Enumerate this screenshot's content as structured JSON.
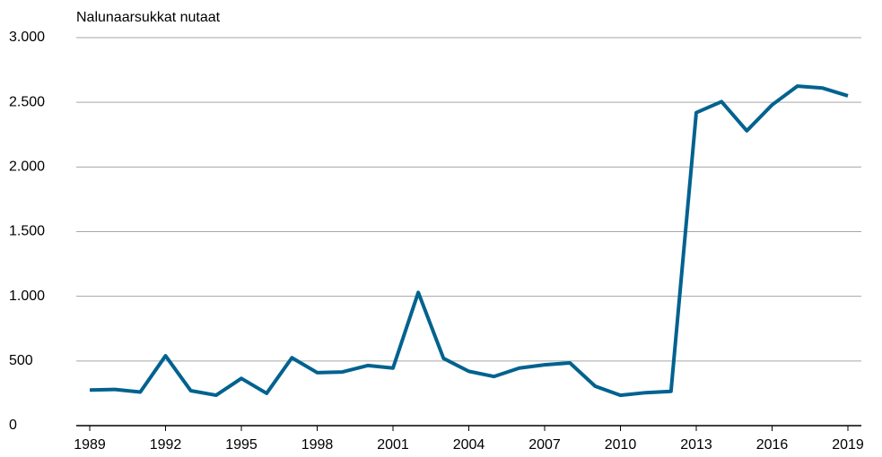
{
  "chart_data": {
    "type": "line",
    "ylabel": "Nalunaarsukkat nutaat",
    "x": [
      1989,
      1990,
      1991,
      1992,
      1993,
      1994,
      1995,
      1996,
      1997,
      1998,
      1999,
      2000,
      2001,
      2002,
      2003,
      2004,
      2005,
      2006,
      2007,
      2008,
      2009,
      2010,
      2011,
      2012,
      2013,
      2014,
      2015,
      2016,
      2017,
      2018,
      2019
    ],
    "series": [
      {
        "name": "Nalunaarsukkat nutaat",
        "color": "#00628f",
        "values": [
          275,
          280,
          260,
          540,
          270,
          235,
          365,
          250,
          525,
          410,
          415,
          465,
          445,
          1030,
          520,
          420,
          380,
          445,
          470,
          485,
          305,
          235,
          255,
          265,
          2420,
          2505,
          2280,
          2480,
          2625,
          2610,
          2550
        ]
      }
    ],
    "xlim": [
      1989,
      2019
    ],
    "xticks": [
      1989,
      1992,
      1995,
      1998,
      2001,
      2004,
      2007,
      2010,
      2013,
      2016,
      2019
    ],
    "ylim": [
      0,
      3000
    ],
    "yticks": [
      0,
      500,
      {
        "value": 1000,
        "label": "1.000"
      },
      {
        "value": 1500,
        "label": "1.500"
      },
      {
        "value": 2000,
        "label": "2.000"
      },
      {
        "value": 2500,
        "label": "2.500"
      },
      {
        "value": 3000,
        "label": "3.000"
      }
    ],
    "grid": true
  }
}
